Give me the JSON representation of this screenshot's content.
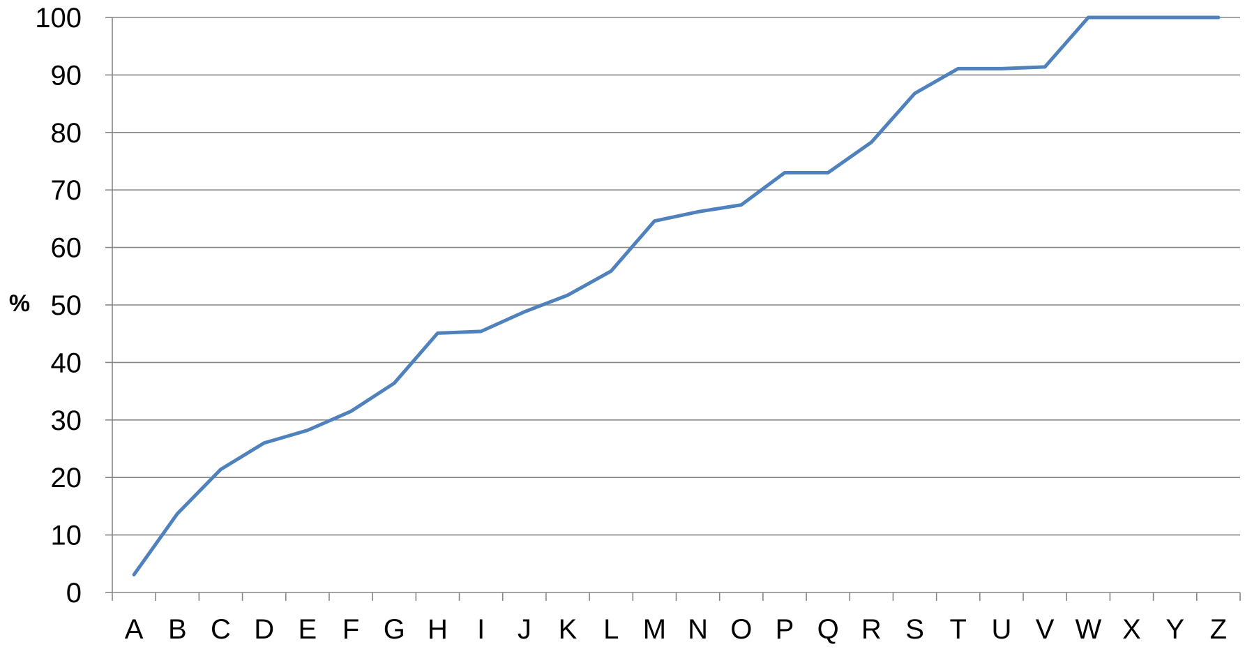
{
  "chart_data": {
    "type": "line",
    "title": "",
    "xlabel": "",
    "ylabel": "%",
    "ylim": [
      0,
      100
    ],
    "yticks": [
      "0",
      "10",
      "20",
      "30",
      "40",
      "50",
      "60",
      "70",
      "80",
      "90",
      "100"
    ],
    "grid": true,
    "legend": "none",
    "categories": [
      "A",
      "B",
      "C",
      "D",
      "E",
      "F",
      "G",
      "H",
      "I",
      "J",
      "K",
      "L",
      "M",
      "N",
      "O",
      "P",
      "Q",
      "R",
      "S",
      "T",
      "U",
      "V",
      "W",
      "X",
      "Y",
      "Z"
    ],
    "series": [
      {
        "color": "#4F81BD",
        "values": [
          3.1,
          13.7,
          21.4,
          26.0,
          28.2,
          31.5,
          36.4,
          45.1,
          45.4,
          48.8,
          51.7,
          55.9,
          64.6,
          66.2,
          67.4,
          73.0,
          73.0,
          78.3,
          86.8,
          91.1,
          91.1,
          91.4,
          100,
          100,
          100,
          100
        ]
      }
    ],
    "gridline_color": "#868686",
    "axis_color": "#868686"
  }
}
